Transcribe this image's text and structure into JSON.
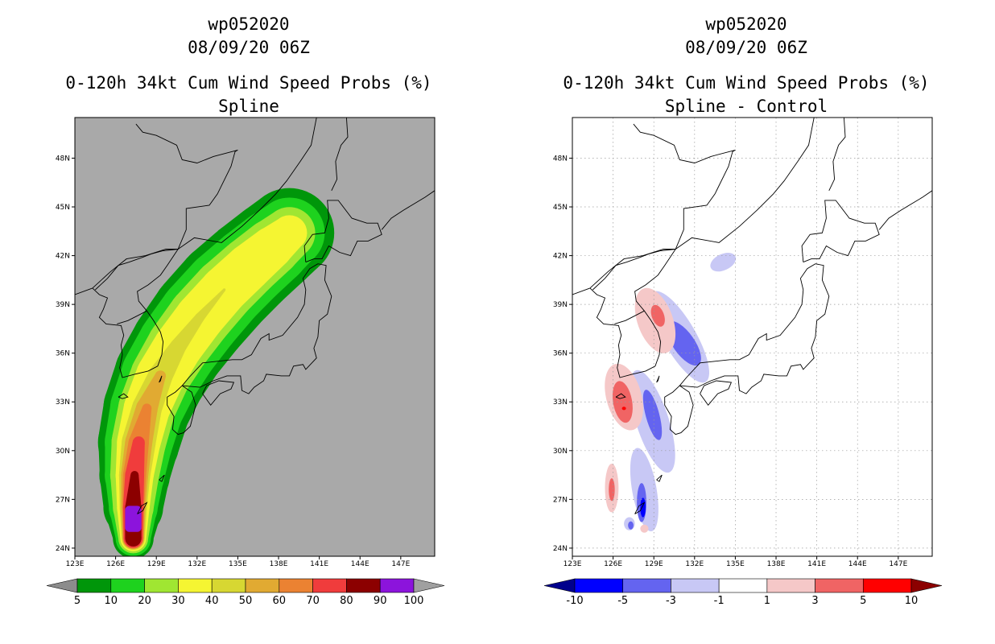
{
  "chart_data": [
    {
      "type": "heatmap",
      "title": [
        "wp052020",
        "08/09/20 06Z",
        "0-120h 34kt Cum Wind Speed Probs (%)",
        "Spline"
      ],
      "xlabel": "",
      "ylabel": "",
      "xlim": [
        123,
        149.5
      ],
      "ylim": [
        23.5,
        50.5
      ],
      "x_ticks": [
        "123E",
        "126E",
        "129E",
        "132E",
        "135E",
        "138E",
        "141E",
        "144E",
        "147E"
      ],
      "x_tick_values": [
        123,
        126,
        129,
        132,
        135,
        138,
        141,
        144,
        147
      ],
      "y_ticks": [
        "24N",
        "27N",
        "30N",
        "33N",
        "36N",
        "39N",
        "42N",
        "45N",
        "48N"
      ],
      "y_tick_values": [
        24,
        27,
        30,
        33,
        36,
        39,
        42,
        45,
        48
      ],
      "background": "#a9a9a9",
      "grid": false,
      "colorbar": {
        "labels": [
          "5",
          "10",
          "20",
          "30",
          "40",
          "50",
          "60",
          "70",
          "80",
          "90",
          "100"
        ],
        "colors": [
          "#8c8c8c",
          "#00960a",
          "#1ed21e",
          "#a0e632",
          "#f5f532",
          "#d7d732",
          "#e1aa32",
          "#eb8232",
          "#f03c3c",
          "#8c0000",
          "#8c14dc",
          "#a0a0a0"
        ]
      },
      "track": {
        "lon": [
          127.3,
          127.3,
          127.4,
          127.7,
          128.3,
          129.3,
          130.6,
          132.2,
          134.0,
          135.8,
          137.5,
          138.8
        ],
        "lat": [
          24.6,
          26.5,
          28.5,
          30.5,
          32.6,
          34.6,
          36.4,
          38.2,
          39.9,
          41.3,
          42.5,
          43.4
        ]
      },
      "levels": [
        {
          "value": 5,
          "color": "#00960a",
          "half_width_deg": [
            1.5,
            2.2,
            2.6,
            3.0,
            3.2,
            3.4,
            3.5,
            3.6,
            3.6,
            3.5,
            3.4,
            3.3
          ]
        },
        {
          "value": 10,
          "color": "#1ed21e",
          "half_width_deg": [
            1.3,
            1.8,
            2.2,
            2.5,
            2.7,
            2.9,
            3.0,
            3.05,
            3.0,
            2.9,
            2.8,
            2.6
          ]
        },
        {
          "value": 20,
          "color": "#a0e632",
          "half_width_deg": [
            1.1,
            1.5,
            1.8,
            2.0,
            2.1,
            2.2,
            2.3,
            2.35,
            2.3,
            2.2,
            2.1,
            1.9
          ]
        },
        {
          "value": 30,
          "color": "#f5f532",
          "half_width_deg": [
            0.95,
            1.2,
            1.4,
            1.6,
            1.7,
            1.8,
            1.8,
            1.8,
            1.75,
            1.7,
            1.55,
            1.3
          ]
        },
        {
          "value": 40,
          "color": "#d7d732",
          "half_width_deg": [
            0.85,
            1.0,
            1.15,
            1.25,
            1.1,
            0.9,
            0.6,
            0.35,
            0.1,
            0,
            0,
            0
          ]
        },
        {
          "value": 50,
          "color": "#e1aa32",
          "half_width_deg": [
            0.8,
            0.9,
            1.0,
            1.0,
            0.8,
            0.4,
            0,
            0,
            0,
            0,
            0,
            0
          ]
        },
        {
          "value": 60,
          "color": "#eb8232",
          "half_width_deg": [
            0.75,
            0.8,
            0.85,
            0.75,
            0.35,
            0,
            0,
            0,
            0,
            0,
            0,
            0
          ]
        },
        {
          "value": 70,
          "color": "#f03c3c",
          "half_width_deg": [
            0.7,
            0.75,
            0.7,
            0.45,
            0,
            0,
            0,
            0,
            0,
            0,
            0,
            0
          ]
        },
        {
          "value": 80,
          "color": "#8c0000",
          "half_width_deg": [
            0.6,
            0.6,
            0.3,
            0,
            0,
            0,
            0,
            0,
            0,
            0,
            0,
            0
          ]
        }
      ],
      "genesis_box": {
        "value": 100,
        "color": "#8c14dc",
        "lon": [
          126.7,
          127.9
        ],
        "lat": [
          25.0,
          26.6
        ]
      }
    },
    {
      "type": "heatmap",
      "title": [
        "wp052020",
        "08/09/20 06Z",
        "0-120h 34kt Cum Wind Speed Probs (%)",
        "Spline - Control"
      ],
      "xlabel": "",
      "ylabel": "",
      "xlim": [
        123,
        149.5
      ],
      "ylim": [
        23.5,
        50.5
      ],
      "x_ticks": [
        "123E",
        "126E",
        "129E",
        "132E",
        "135E",
        "138E",
        "141E",
        "144E",
        "147E"
      ],
      "x_tick_values": [
        123,
        126,
        129,
        132,
        135,
        138,
        141,
        144,
        147
      ],
      "y_ticks": [
        "24N",
        "27N",
        "30N",
        "33N",
        "36N",
        "39N",
        "42N",
        "45N",
        "48N"
      ],
      "y_tick_values": [
        24,
        27,
        30,
        33,
        36,
        39,
        42,
        45,
        48
      ],
      "background": "#ffffff",
      "grid": true,
      "colorbar": {
        "labels": [
          "-10",
          "-5",
          "-3",
          "-1",
          "1",
          "3",
          "5",
          "10"
        ],
        "colors": [
          "#00008c",
          "#0000ff",
          "#6464f0",
          "#c8c8f5",
          "#ffffff",
          "#f5c8c8",
          "#f06464",
          "#ff0000",
          "#8c0000"
        ]
      },
      "anomalies": [
        {
          "sign": "negative",
          "color": "#c8c8f5",
          "lon": 130.9,
          "lat": 37.0,
          "rx_deg": 1.2,
          "ry_deg": 3.2,
          "rot_deg": -30
        },
        {
          "sign": "negative",
          "color": "#c8c8f5",
          "lon": 128.9,
          "lat": 31.8,
          "rx_deg": 1.2,
          "ry_deg": 3.3,
          "rot_deg": -18
        },
        {
          "sign": "negative",
          "color": "#c8c8f5",
          "lon": 128.3,
          "lat": 27.6,
          "rx_deg": 0.9,
          "ry_deg": 2.6,
          "rot_deg": -10
        },
        {
          "sign": "negative",
          "color": "#c8c8f5",
          "lon": 134.1,
          "lat": 41.6,
          "rx_deg": 1.0,
          "ry_deg": 0.5,
          "rot_deg": -25
        },
        {
          "sign": "negative",
          "color": "#c8c8f5",
          "lon": 127.2,
          "lat": 25.5,
          "rx_deg": 0.4,
          "ry_deg": 0.4,
          "rot_deg": 0
        },
        {
          "sign": "negative",
          "color": "#6464f0",
          "lon": 131.2,
          "lat": 36.6,
          "rx_deg": 0.8,
          "ry_deg": 1.6,
          "rot_deg": -35
        },
        {
          "sign": "negative",
          "color": "#6464f0",
          "lon": 128.9,
          "lat": 32.2,
          "rx_deg": 0.5,
          "ry_deg": 1.6,
          "rot_deg": -15
        },
        {
          "sign": "negative",
          "color": "#6464f0",
          "lon": 128.1,
          "lat": 26.8,
          "rx_deg": 0.35,
          "ry_deg": 1.2,
          "rot_deg": 0
        },
        {
          "sign": "negative",
          "color": "#6464f0",
          "lon": 127.3,
          "lat": 25.4,
          "rx_deg": 0.2,
          "ry_deg": 0.25,
          "rot_deg": 0
        },
        {
          "sign": "negative",
          "color": "#0000ff",
          "lon": 128.2,
          "lat": 26.5,
          "rx_deg": 0.2,
          "ry_deg": 0.6,
          "rot_deg": 0
        },
        {
          "sign": "positive",
          "color": "#f5c8c8",
          "lon": 129.1,
          "lat": 38.0,
          "rx_deg": 1.3,
          "ry_deg": 2.1,
          "rot_deg": -20
        },
        {
          "sign": "positive",
          "color": "#f5c8c8",
          "lon": 126.8,
          "lat": 33.3,
          "rx_deg": 1.3,
          "ry_deg": 2.1,
          "rot_deg": -15
        },
        {
          "sign": "positive",
          "color": "#f5c8c8",
          "lon": 125.9,
          "lat": 27.7,
          "rx_deg": 0.5,
          "ry_deg": 1.5,
          "rot_deg": 0
        },
        {
          "sign": "positive",
          "color": "#f5c8c8",
          "lon": 128.3,
          "lat": 25.2,
          "rx_deg": 0.3,
          "ry_deg": 0.25,
          "rot_deg": 0
        },
        {
          "sign": "positive",
          "color": "#f06464",
          "lon": 129.3,
          "lat": 38.3,
          "rx_deg": 0.45,
          "ry_deg": 0.7,
          "rot_deg": -20
        },
        {
          "sign": "positive",
          "color": "#f06464",
          "lon": 126.7,
          "lat": 33.0,
          "rx_deg": 0.7,
          "ry_deg": 1.3,
          "rot_deg": -10
        },
        {
          "sign": "positive",
          "color": "#f06464",
          "lon": 125.9,
          "lat": 27.6,
          "rx_deg": 0.22,
          "ry_deg": 0.7,
          "rot_deg": 0
        },
        {
          "sign": "positive",
          "color": "#ff0000",
          "lon": 126.8,
          "lat": 32.6,
          "rx_deg": 0.15,
          "ry_deg": 0.1,
          "rot_deg": 0
        }
      ]
    }
  ]
}
